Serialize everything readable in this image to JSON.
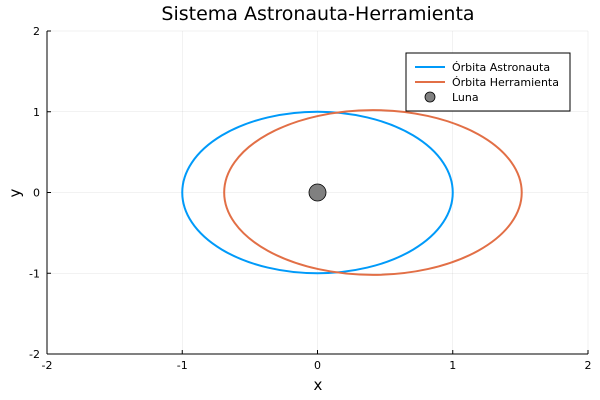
{
  "chart_data": {
    "type": "line",
    "title": "Sistema Astronauta-Herramienta",
    "xlabel": "x",
    "ylabel": "y",
    "xlim": [
      -2,
      2
    ],
    "ylim": [
      -2,
      2
    ],
    "xticks": [
      -2,
      -1,
      0,
      1,
      2
    ],
    "yticks": [
      -2,
      -1,
      0,
      1,
      2
    ],
    "grid": true,
    "legend_position": "top-right",
    "series": [
      {
        "name": "Órbita Astronauta",
        "kind": "ellipse",
        "center": [
          0,
          0
        ],
        "semi_axes": [
          1.0,
          1.0
        ],
        "color": "#009af9"
      },
      {
        "name": "Órbita Herramienta",
        "kind": "ellipse",
        "center": [
          0.41,
          0.0
        ],
        "semi_axes": [
          1.1,
          1.02
        ],
        "color": "#e26f46"
      }
    ],
    "points": [
      {
        "name": "Luna",
        "x": 0,
        "y": 0,
        "color": "#808080"
      }
    ]
  }
}
